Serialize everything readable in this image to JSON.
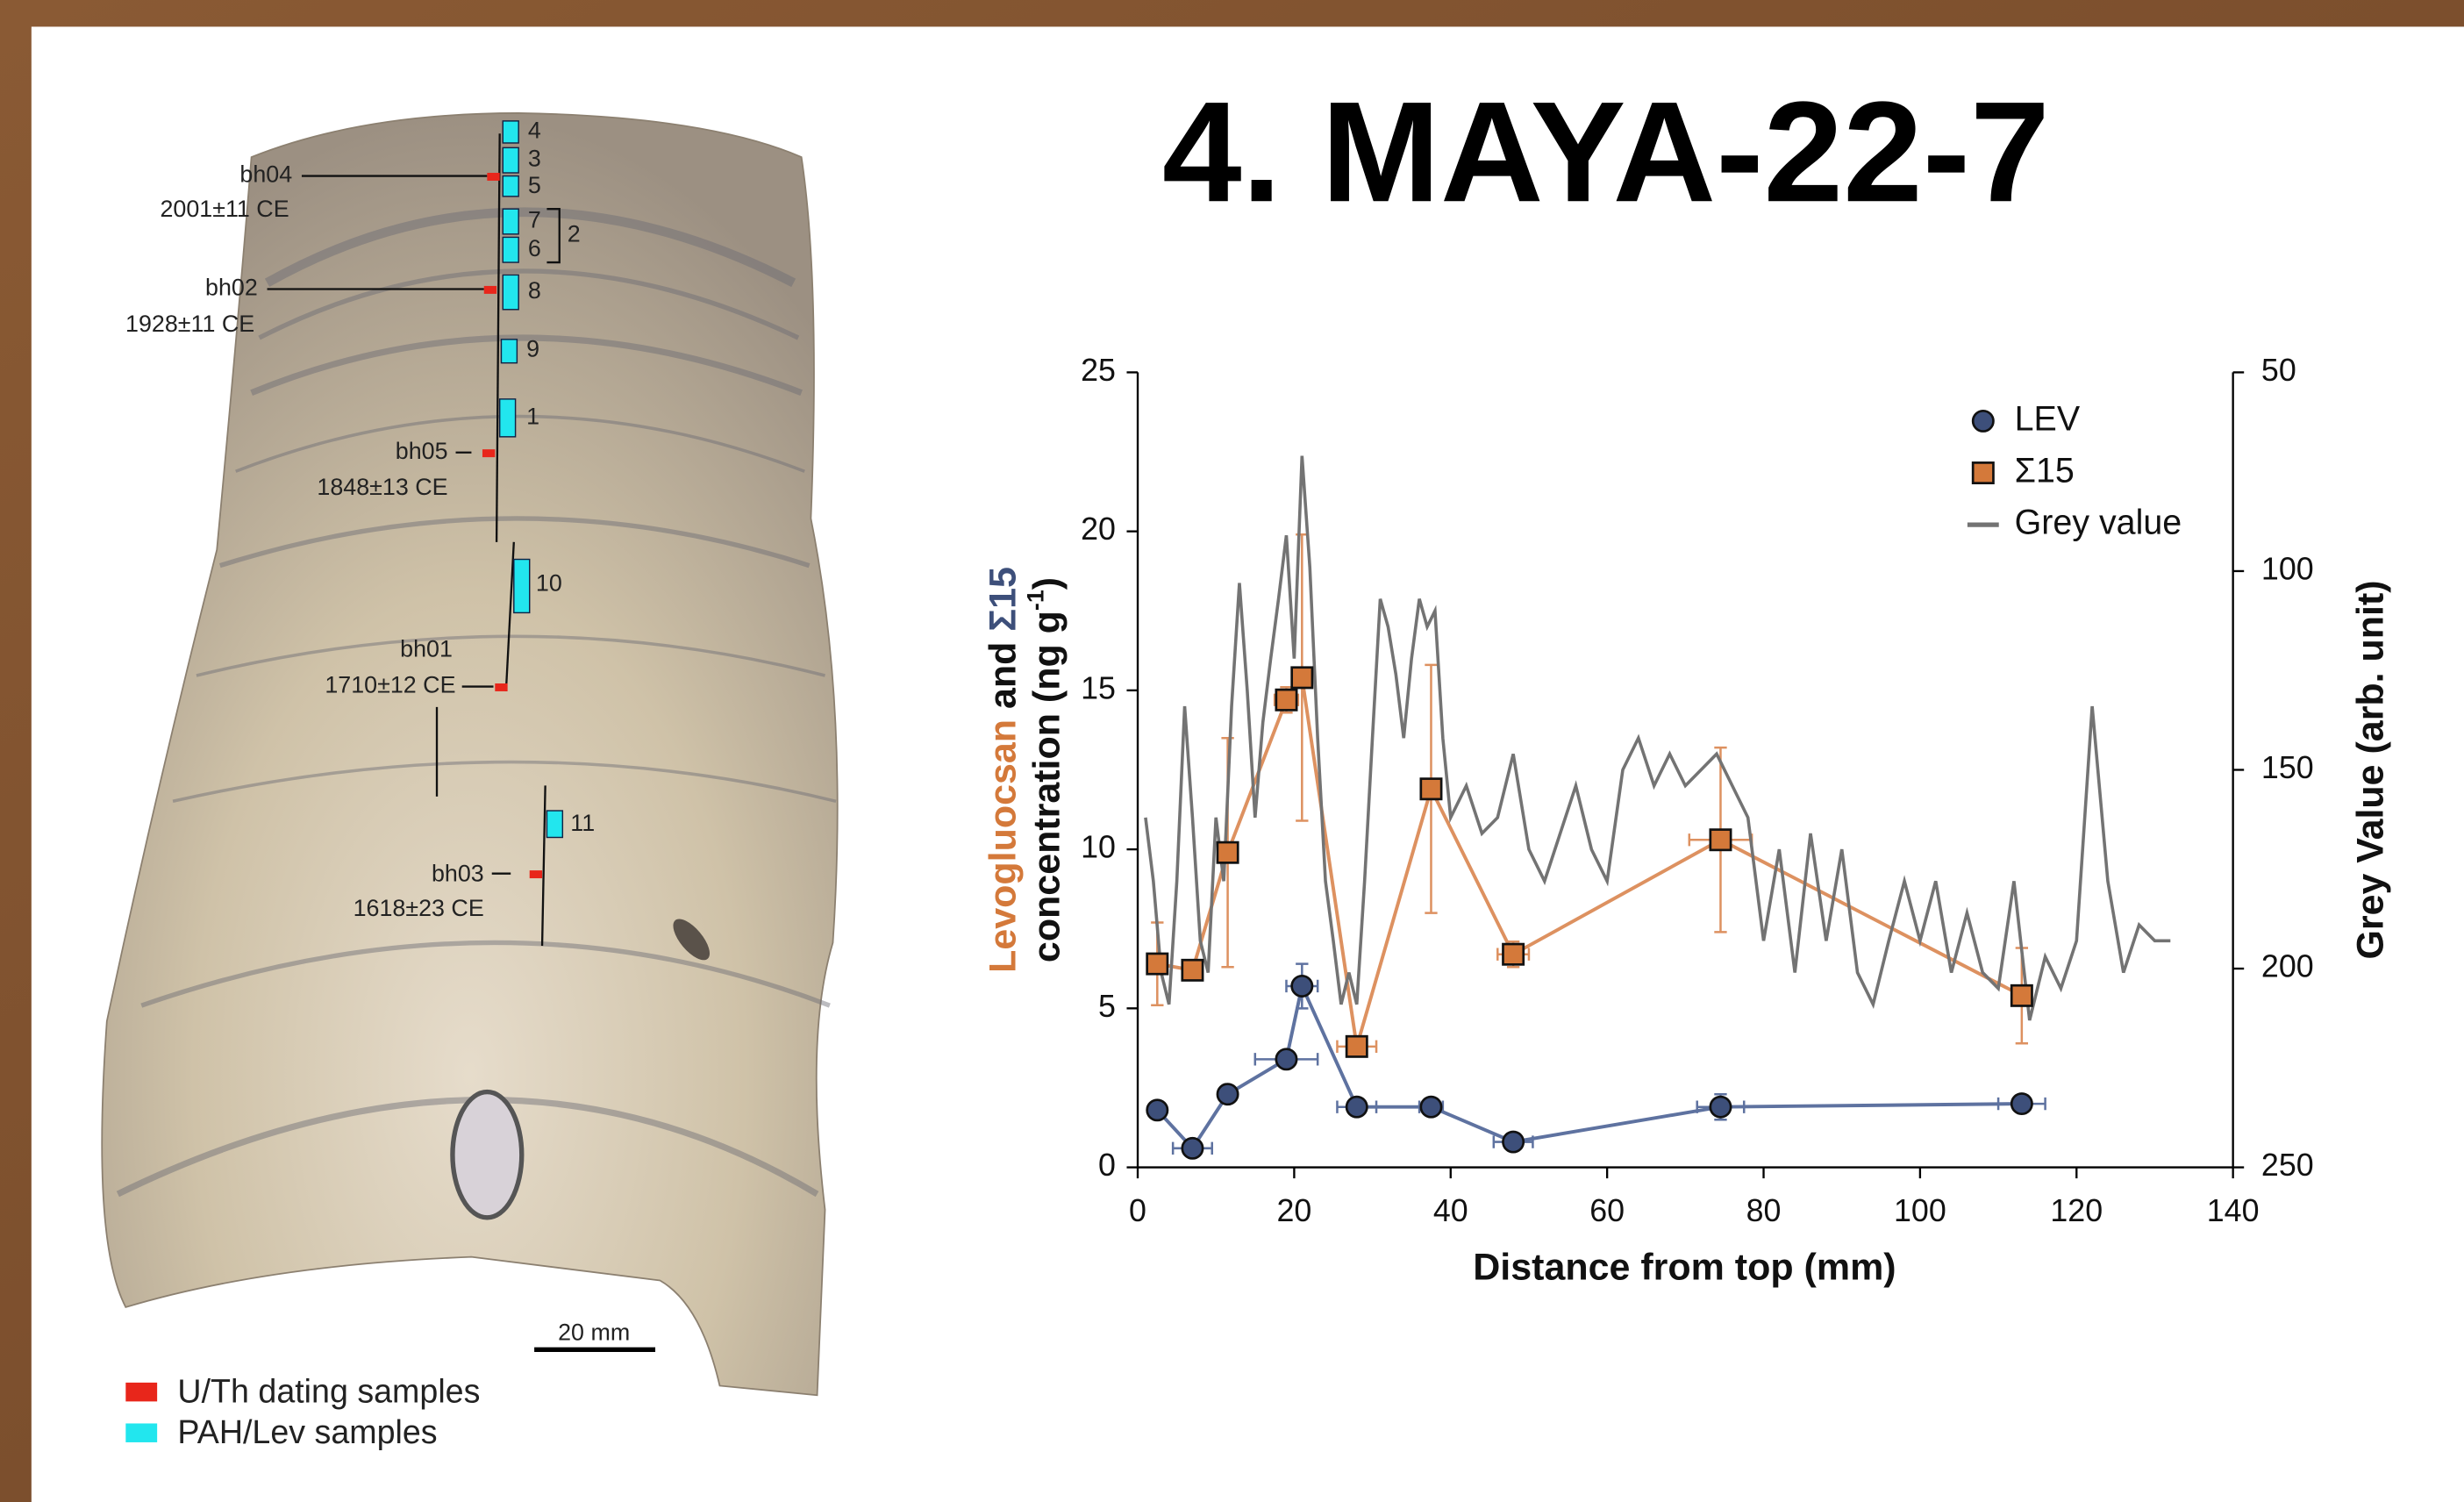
{
  "chart_data": {
    "type": "line",
    "title": "4. MAYA-22-7",
    "xlabel": "Distance from top (mm)",
    "ylabel": [
      "Levogluocsan",
      "and",
      "Σ15",
      "concentration (ng g",
      "-1",
      ")"
    ],
    "y2label": "Grey Value (arb. unit)",
    "xlim": [
      0,
      140
    ],
    "xticks": [
      0,
      20,
      40,
      60,
      80,
      100,
      120,
      140
    ],
    "ylim": [
      0,
      25
    ],
    "yticks": [
      0,
      5,
      10,
      15,
      20,
      25
    ],
    "y2lim": [
      50,
      250
    ],
    "y2ticks": [
      50,
      100,
      150,
      200,
      250
    ],
    "y2_reversed": true,
    "legend": "top-right",
    "series": [
      {
        "name": "LEV",
        "color": "#3d4f7a",
        "line_color": "#5e72a0",
        "marker": "circle",
        "x": [
          2.5,
          7,
          11.5,
          19,
          21,
          28,
          37.5,
          48,
          74.5,
          113
        ],
        "values": [
          1.8,
          0.6,
          2.3,
          3.4,
          5.7,
          1.9,
          1.9,
          0.8,
          1.9,
          2.0
        ],
        "x_errors": [
          1,
          2.5,
          1,
          4,
          2,
          2.5,
          1.5,
          2.5,
          3,
          3
        ],
        "y_errors": [
          null,
          null,
          null,
          null,
          0.7,
          null,
          null,
          null,
          0.4,
          null
        ]
      },
      {
        "name": "Σ15",
        "color": "#d4793a",
        "line_color": "#dd9160",
        "marker": "square",
        "x": [
          2.5,
          7,
          11.5,
          19,
          21,
          28,
          37.5,
          48,
          74.5,
          113
        ],
        "values": [
          6.4,
          6.2,
          9.9,
          14.7,
          15.4,
          3.8,
          11.9,
          6.7,
          10.3,
          5.4
        ],
        "x_errors": [
          1,
          1,
          1,
          1.5,
          1,
          2.5,
          1,
          2,
          4,
          1
        ],
        "y_errors": [
          1.3,
          0.3,
          3.6,
          0.4,
          4.5,
          0.2,
          3.9,
          0.4,
          2.9,
          1.5
        ]
      },
      {
        "name": "Grey value",
        "color": "#737373",
        "axis": "y2",
        "marker": null,
        "x": [
          1,
          2,
          3,
          4,
          5,
          6,
          7,
          8,
          9,
          10,
          11,
          12,
          13,
          14,
          15,
          16,
          17,
          18,
          19,
          20,
          21,
          22,
          23,
          24,
          25,
          26,
          27,
          28,
          29,
          30,
          31,
          32,
          33,
          34,
          35,
          36,
          37,
          38,
          39,
          40,
          42,
          44,
          46,
          48,
          50,
          52,
          54,
          56,
          58,
          60,
          62,
          64,
          66,
          68,
          70,
          72,
          74,
          76,
          78,
          80,
          82,
          84,
          86,
          88,
          90,
          92,
          94,
          96,
          98,
          100,
          102,
          104,
          106,
          108,
          110,
          112,
          114,
          116,
          118,
          120,
          122,
          124,
          126,
          128,
          130,
          132
        ],
        "values": [
          162,
          178,
          201,
          209,
          178,
          134,
          162,
          193,
          201,
          162,
          178,
          134,
          103,
          130,
          162,
          138,
          122,
          107,
          91,
          122,
          71,
          99,
          142,
          178,
          193,
          209,
          201,
          209,
          178,
          142,
          107,
          114,
          126,
          142,
          122,
          107,
          114,
          110,
          142,
          162,
          154,
          166,
          162,
          146,
          170,
          178,
          166,
          154,
          170,
          178,
          150,
          142,
          154,
          146,
          154,
          150,
          146,
          154,
          162,
          193,
          170,
          201,
          166,
          193,
          170,
          201,
          209,
          193,
          178,
          193,
          178,
          201,
          186,
          201,
          205,
          178,
          213,
          197,
          205,
          193,
          134,
          178,
          201,
          189,
          193,
          193
        ]
      }
    ]
  },
  "figure": {
    "samples": [
      "4",
      "3",
      "5",
      "7",
      "6",
      "2",
      "8",
      "9",
      "1",
      "10",
      "11"
    ],
    "dating": [
      {
        "id": "bh04",
        "age": "2001±11 CE"
      },
      {
        "id": "bh02",
        "age": "1928±11 CE"
      },
      {
        "id": "bh05",
        "age": "1848±13 CE"
      },
      {
        "id": "bh01",
        "age": "1710±12 CE"
      },
      {
        "id": "bh03",
        "age": "1618±23 CE"
      }
    ],
    "scale_bar": "20 mm",
    "legend": [
      "U/Th dating samples",
      "PAH/Lev samples"
    ]
  }
}
